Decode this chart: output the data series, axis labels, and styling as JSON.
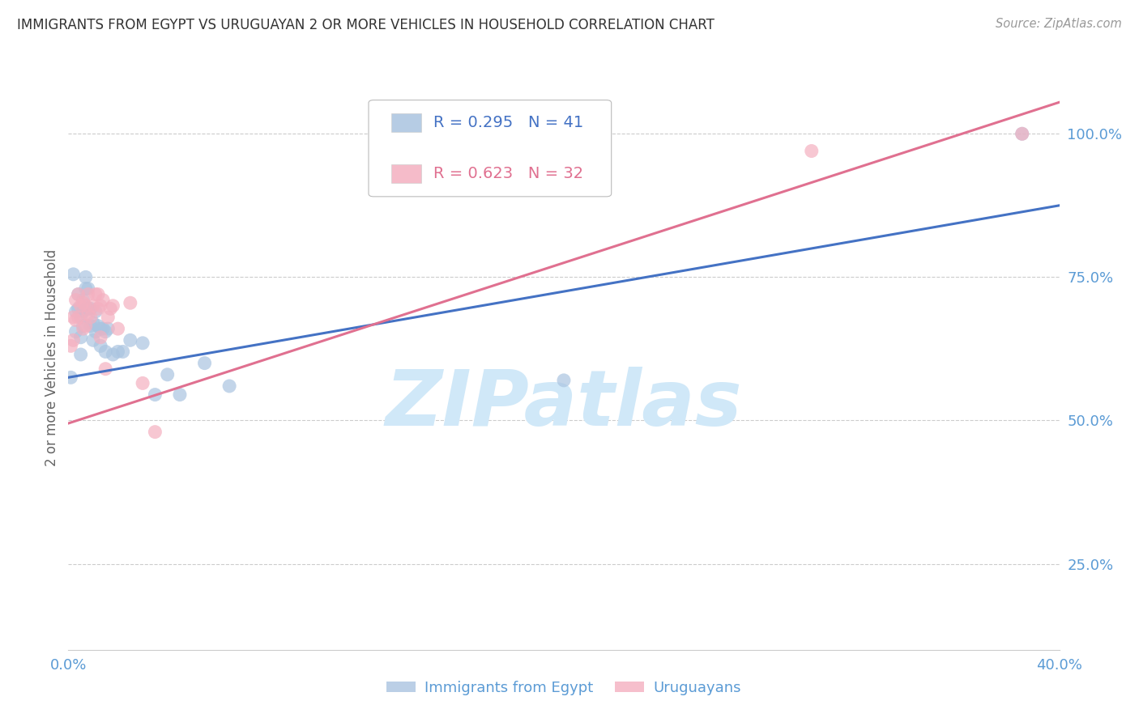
{
  "title": "IMMIGRANTS FROM EGYPT VS URUGUAYAN 2 OR MORE VEHICLES IN HOUSEHOLD CORRELATION CHART",
  "source": "Source: ZipAtlas.com",
  "ylabel": "2 or more Vehicles in Household",
  "xlim": [
    0.0,
    0.4
  ],
  "ylim": [
    0.1,
    1.12
  ],
  "yticks": [
    0.25,
    0.5,
    0.75,
    1.0
  ],
  "ytick_labels": [
    "25.0%",
    "50.0%",
    "75.0%",
    "100.0%"
  ],
  "xticks": [
    0.0,
    0.05,
    0.1,
    0.15,
    0.2,
    0.25,
    0.3,
    0.35,
    0.4
  ],
  "xtick_labels": [
    "0.0%",
    "",
    "",
    "",
    "",
    "",
    "",
    "",
    "40.0%"
  ],
  "blue_R": "0.295",
  "blue_N": "41",
  "pink_R": "0.623",
  "pink_N": "32",
  "blue_color": "#aac4e0",
  "pink_color": "#f4b0c0",
  "blue_line_color": "#4472c4",
  "pink_line_color": "#e07090",
  "watermark_color": "#d0e8f8",
  "title_color": "#333333",
  "axis_label_color": "#5b9bd5",
  "grid_color": "#cccccc",
  "blue_scatter_x": [
    0.001,
    0.002,
    0.003,
    0.003,
    0.004,
    0.004,
    0.005,
    0.005,
    0.005,
    0.006,
    0.006,
    0.006,
    0.007,
    0.007,
    0.008,
    0.008,
    0.009,
    0.009,
    0.01,
    0.01,
    0.011,
    0.011,
    0.012,
    0.013,
    0.013,
    0.014,
    0.015,
    0.015,
    0.016,
    0.018,
    0.02,
    0.022,
    0.025,
    0.03,
    0.035,
    0.04,
    0.045,
    0.055,
    0.065,
    0.2,
    0.385
  ],
  "blue_scatter_y": [
    0.575,
    0.755,
    0.655,
    0.69,
    0.695,
    0.72,
    0.68,
    0.645,
    0.615,
    0.71,
    0.69,
    0.665,
    0.73,
    0.75,
    0.73,
    0.695,
    0.695,
    0.665,
    0.67,
    0.64,
    0.69,
    0.655,
    0.665,
    0.63,
    0.66,
    0.66,
    0.62,
    0.655,
    0.66,
    0.615,
    0.62,
    0.62,
    0.64,
    0.635,
    0.545,
    0.58,
    0.545,
    0.6,
    0.56,
    0.57,
    1.0
  ],
  "pink_scatter_x": [
    0.001,
    0.002,
    0.002,
    0.003,
    0.003,
    0.004,
    0.004,
    0.005,
    0.006,
    0.006,
    0.007,
    0.007,
    0.008,
    0.008,
    0.009,
    0.01,
    0.011,
    0.012,
    0.012,
    0.013,
    0.013,
    0.014,
    0.015,
    0.016,
    0.017,
    0.018,
    0.02,
    0.025,
    0.03,
    0.035,
    0.3,
    0.385
  ],
  "pink_scatter_y": [
    0.63,
    0.68,
    0.64,
    0.71,
    0.675,
    0.72,
    0.68,
    0.7,
    0.705,
    0.66,
    0.7,
    0.665,
    0.72,
    0.685,
    0.68,
    0.7,
    0.72,
    0.72,
    0.695,
    0.645,
    0.7,
    0.71,
    0.59,
    0.68,
    0.695,
    0.7,
    0.66,
    0.705,
    0.565,
    0.48,
    0.97,
    1.0
  ],
  "blue_line_x": [
    0.0,
    0.4
  ],
  "blue_line_y": [
    0.575,
    0.875
  ],
  "pink_line_x": [
    0.0,
    0.4
  ],
  "pink_line_y": [
    0.495,
    1.055
  ],
  "background_color": "#ffffff",
  "legend_label_blue": "Immigrants from Egypt",
  "legend_label_pink": "Uruguayans"
}
